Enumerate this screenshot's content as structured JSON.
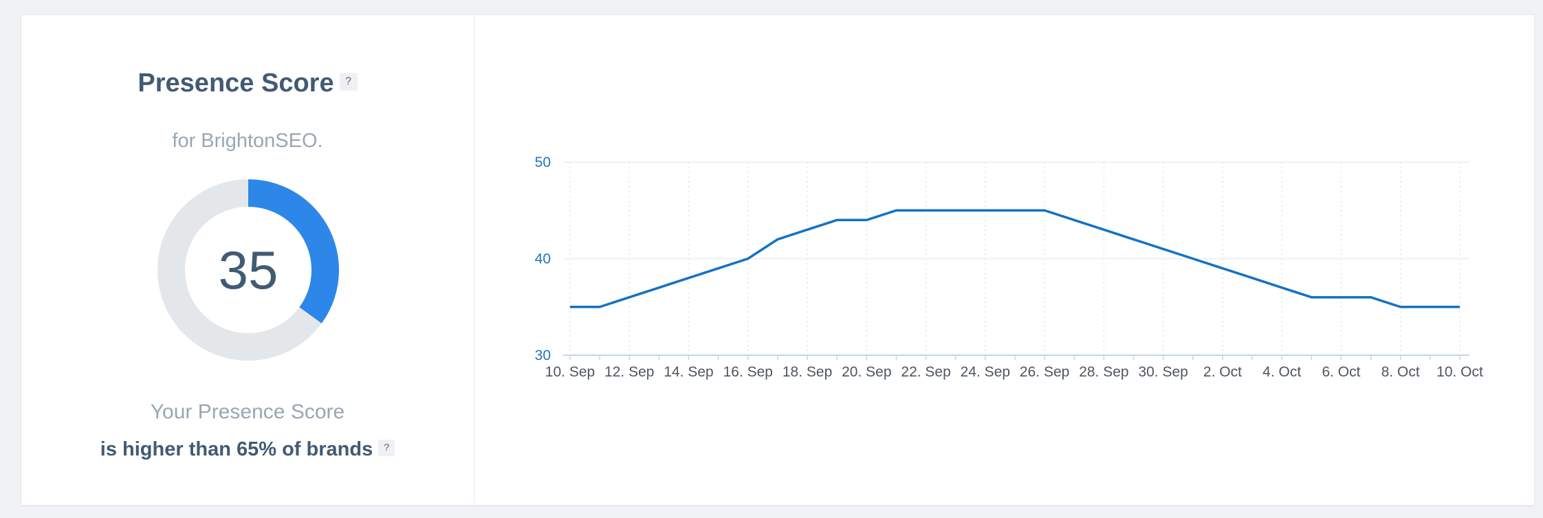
{
  "presence": {
    "title": "Presence Score",
    "help": "?",
    "subtitle": "for BrightonSEO.",
    "score": "35",
    "score_value": 35,
    "score_max": 100,
    "caption_line1": "Your Presence Score",
    "caption_line2": "is higher than 65% of brands",
    "caption_help": "?"
  },
  "colors": {
    "accent": "#2d87e8",
    "track": "#e4e7ea",
    "line": "#1272c4",
    "axis_text": "#1f74c1",
    "grid": "#e9edf2",
    "tick_text": "#4d5560"
  },
  "chart_data": {
    "type": "line",
    "title": "",
    "xlabel": "",
    "ylabel": "",
    "ylim": [
      30,
      50
    ],
    "y_ticks": [
      "30",
      "40",
      "50"
    ],
    "x_tick_labels": [
      "10. Sep",
      "12. Sep",
      "14. Sep",
      "16. Sep",
      "18. Sep",
      "20. Sep",
      "22. Sep",
      "24. Sep",
      "26. Sep",
      "28. Sep",
      "30. Sep",
      "2. Oct",
      "4. Oct",
      "6. Oct",
      "8. Oct",
      "10. Oct"
    ],
    "grid": "vertical dotted, horizontal solid",
    "legend": "none",
    "series": [
      {
        "x": [
          "10. Sep",
          "11. Sep",
          "12. Sep",
          "13. Sep",
          "14. Sep",
          "15. Sep",
          "16. Sep",
          "17. Sep",
          "18. Sep",
          "19. Sep",
          "20. Sep",
          "21. Sep",
          "22. Sep",
          "23. Sep",
          "24. Sep",
          "25. Sep",
          "26. Sep",
          "27. Sep",
          "28. Sep",
          "29. Sep",
          "30. Sep",
          "1. Oct",
          "2. Oct",
          "3. Oct",
          "4. Oct",
          "5. Oct",
          "6. Oct",
          "7. Oct",
          "8. Oct",
          "9. Oct",
          "10. Oct"
        ],
        "values": [
          35,
          35,
          36,
          37,
          38,
          39,
          40,
          42,
          43,
          44,
          44,
          45,
          45,
          45,
          45,
          45,
          45,
          44,
          43,
          42,
          41,
          40,
          39,
          38,
          37,
          36,
          36,
          36,
          35,
          35,
          35
        ]
      }
    ]
  }
}
